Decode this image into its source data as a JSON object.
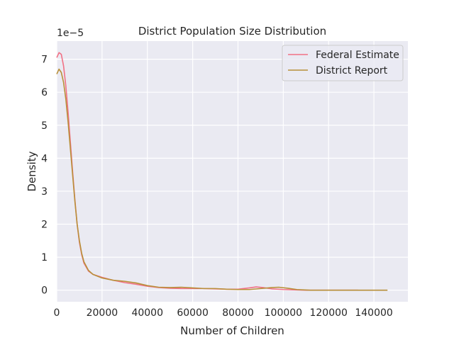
{
  "chart_data": {
    "type": "line",
    "title": "District Population Size Distribution",
    "xlabel": "Number of Children",
    "ylabel": "Density",
    "y_offset_text": "1e−5",
    "xlim": [
      0,
      155000
    ],
    "ylim": [
      -0.35,
      7.55
    ],
    "x_ticks": [
      0,
      20000,
      40000,
      60000,
      80000,
      100000,
      120000,
      140000
    ],
    "x_tick_labels": [
      "0",
      "20000",
      "40000",
      "60000",
      "80000",
      "100000",
      "120000",
      "140000"
    ],
    "y_ticks": [
      0,
      1,
      2,
      3,
      4,
      5,
      6,
      7
    ],
    "y_tick_labels": [
      "0",
      "1",
      "2",
      "3",
      "4",
      "5",
      "6",
      "7"
    ],
    "grid": true,
    "legend_position": "top-right",
    "background": "#eaeaf2",
    "series": [
      {
        "name": "Federal Estimate",
        "color": "#f17185",
        "points": [
          [
            0,
            7.05
          ],
          [
            1000,
            7.2
          ],
          [
            2000,
            7.15
          ],
          [
            3000,
            6.8
          ],
          [
            4000,
            6.2
          ],
          [
            5000,
            5.4
          ],
          [
            6000,
            4.5
          ],
          [
            7000,
            3.6
          ],
          [
            8000,
            2.75
          ],
          [
            9000,
            2.0
          ],
          [
            10000,
            1.45
          ],
          [
            11000,
            1.08
          ],
          [
            12000,
            0.82
          ],
          [
            14000,
            0.58
          ],
          [
            16000,
            0.48
          ],
          [
            20000,
            0.39
          ],
          [
            25000,
            0.3
          ],
          [
            30000,
            0.23
          ],
          [
            35000,
            0.18
          ],
          [
            40000,
            0.12
          ],
          [
            45000,
            0.08
          ],
          [
            50000,
            0.06
          ],
          [
            55000,
            0.05
          ],
          [
            60000,
            0.05
          ],
          [
            65000,
            0.05
          ],
          [
            70000,
            0.04
          ],
          [
            75000,
            0.03
          ],
          [
            80000,
            0.03
          ],
          [
            85000,
            0.07
          ],
          [
            88000,
            0.1
          ],
          [
            91000,
            0.08
          ],
          [
            95000,
            0.04
          ],
          [
            100000,
            0.02
          ],
          [
            105000,
            0.01
          ],
          [
            110000,
            0.0
          ],
          [
            120000,
            0.0
          ],
          [
            133000,
            0.0
          ]
        ]
      },
      {
        "name": "District Report",
        "color": "#b8903a",
        "points": [
          [
            0,
            6.55
          ],
          [
            1000,
            6.7
          ],
          [
            2000,
            6.6
          ],
          [
            3000,
            6.3
          ],
          [
            4000,
            5.8
          ],
          [
            5000,
            5.1
          ],
          [
            6000,
            4.3
          ],
          [
            7000,
            3.5
          ],
          [
            8000,
            2.7
          ],
          [
            9000,
            2.0
          ],
          [
            10000,
            1.5
          ],
          [
            11000,
            1.12
          ],
          [
            12000,
            0.86
          ],
          [
            14000,
            0.6
          ],
          [
            16000,
            0.48
          ],
          [
            20000,
            0.37
          ],
          [
            25000,
            0.3
          ],
          [
            30000,
            0.27
          ],
          [
            35000,
            0.22
          ],
          [
            40000,
            0.14
          ],
          [
            45000,
            0.09
          ],
          [
            50000,
            0.08
          ],
          [
            55000,
            0.09
          ],
          [
            60000,
            0.07
          ],
          [
            65000,
            0.05
          ],
          [
            70000,
            0.05
          ],
          [
            75000,
            0.03
          ],
          [
            80000,
            0.02
          ],
          [
            85000,
            0.02
          ],
          [
            90000,
            0.05
          ],
          [
            95000,
            0.08
          ],
          [
            98000,
            0.09
          ],
          [
            102000,
            0.06
          ],
          [
            106000,
            0.02
          ],
          [
            112000,
            0.0
          ],
          [
            125000,
            0.0
          ],
          [
            146000,
            0.0
          ]
        ]
      }
    ]
  }
}
